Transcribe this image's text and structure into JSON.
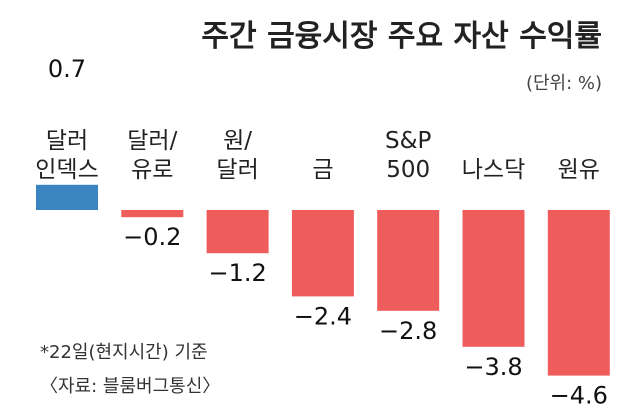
{
  "chart_data": {
    "type": "bar",
    "title": "주간 금융시장 주요 자산 수익률",
    "unit": "(단위: %)",
    "categories": [
      [
        "달러",
        "인덱스"
      ],
      [
        "달러/",
        "유로"
      ],
      [
        "원/",
        "달러"
      ],
      [
        "금"
      ],
      [
        "S&P",
        "500"
      ],
      [
        "나스닥"
      ],
      [
        "원유"
      ]
    ],
    "values": [
      0.7,
      -0.2,
      -1.2,
      -2.4,
      -2.8,
      -3.8,
      -4.6
    ],
    "value_labels": [
      "0.7",
      "−0.2",
      "−1.2",
      "−2.4",
      "−2.8",
      "−3.8",
      "−4.6"
    ],
    "colors": {
      "positive": "#3a84c2",
      "negative": "#ee5c5c"
    },
    "footnotes": [
      "*22일(현지시간) 기준",
      "〈자료: 블룸버그통신〉"
    ]
  }
}
